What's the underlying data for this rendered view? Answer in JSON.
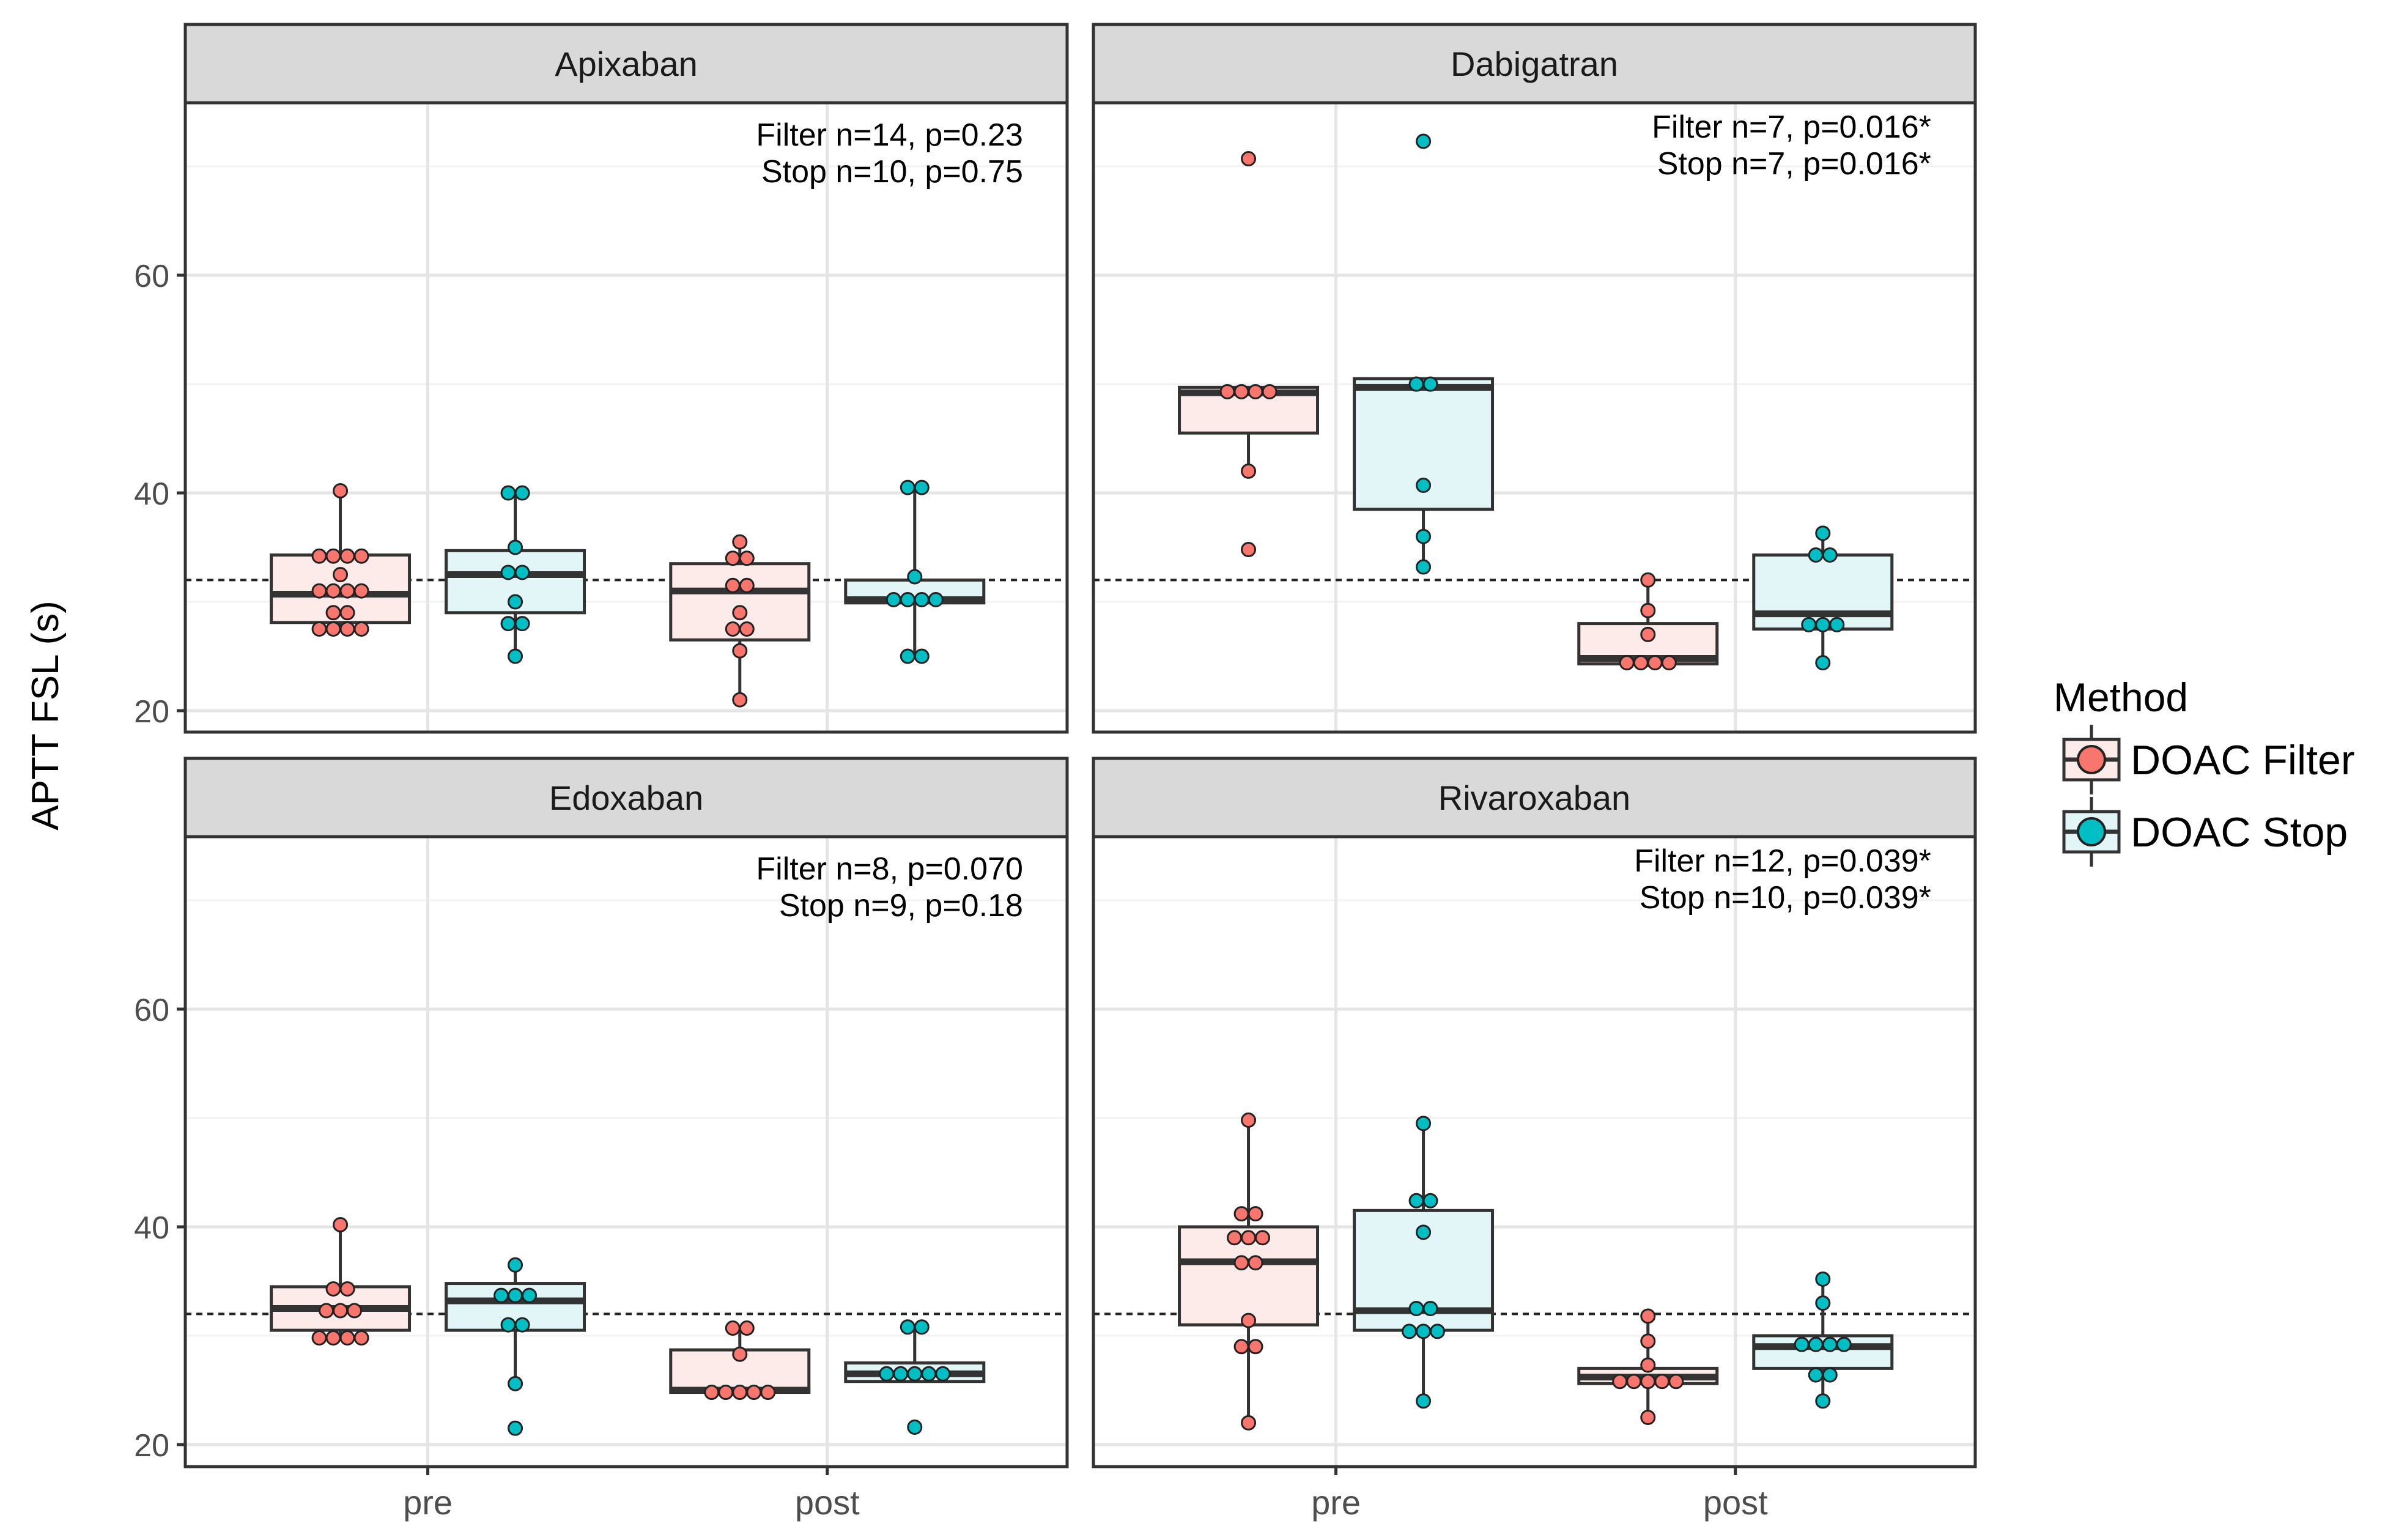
{
  "chart_data": {
    "type": "box",
    "ylabel": "APTT FSL (s)",
    "xlabel": "",
    "categories": [
      "pre",
      "post"
    ],
    "y_ticks": [
      "20",
      "40",
      "60"
    ],
    "ylim": [
      18,
      73
    ],
    "reference_line": 32,
    "grid": true,
    "legend": {
      "title": "Method",
      "position": "right",
      "items": [
        {
          "label": "DOAC Filter",
          "color": "#F8766D",
          "fill": "#FDEBEA"
        },
        {
          "label": "DOAC Stop",
          "color": "#00BFC4",
          "fill": "#E3F6F7"
        }
      ]
    },
    "panels": [
      {
        "title": "Apixaban",
        "annotation": [
          "Filter n=14, p=0.23",
          "Stop n=10, p=0.75"
        ],
        "groups": [
          {
            "category": "pre",
            "method": "DOAC Filter",
            "box": [
              27.5,
              28.1,
              30.7,
              34.3,
              40.2
            ],
            "points": [
              40.2,
              34.2,
              34.2,
              34.2,
              34.2,
              32.5,
              31.0,
              31.0,
              31.0,
              31.0,
              29.0,
              29.0,
              27.5,
              27.5,
              27.5,
              27.5
            ]
          },
          {
            "category": "pre",
            "method": "DOAC Stop",
            "box": [
              25.0,
              29.0,
              32.5,
              34.7,
              40.0
            ],
            "points": [
              40.0,
              40.0,
              35.0,
              32.7,
              32.7,
              30.0,
              28.0,
              28.0,
              25.0
            ]
          },
          {
            "category": "post",
            "method": "DOAC Filter",
            "box": [
              21.0,
              26.5,
              31.0,
              33.5,
              35.5
            ],
            "points": [
              35.5,
              34.0,
              34.0,
              31.5,
              31.5,
              29.0,
              27.5,
              27.5,
              25.5,
              21.0
            ]
          },
          {
            "category": "post",
            "method": "DOAC Stop",
            "box": [
              25.0,
              29.9,
              30.2,
              32.0,
              40.5
            ],
            "points": [
              40.5,
              40.5,
              32.3,
              30.2,
              30.2,
              30.2,
              30.2,
              25.0,
              25.0
            ]
          }
        ]
      },
      {
        "title": "Dabigatran",
        "annotation": [
          "Filter n=7, p=0.016*",
          "Stop n=7, p=0.016*"
        ],
        "groups": [
          {
            "category": "pre",
            "method": "DOAC Filter",
            "box": [
              42.0,
              45.5,
              49.2,
              49.7,
              49.7
            ],
            "points": [
              70.7,
              49.3,
              49.3,
              49.3,
              49.3,
              42.0,
              34.8
            ]
          },
          {
            "category": "pre",
            "method": "DOAC Stop",
            "box": [
              33.0,
              38.5,
              49.7,
              50.5,
              50.5
            ],
            "points": [
              72.3,
              50.0,
              50.0,
              40.7,
              36.0,
              33.2
            ]
          },
          {
            "category": "post",
            "method": "DOAC Filter",
            "box": [
              24.0,
              24.3,
              24.8,
              28.0,
              31.7
            ],
            "points": [
              32.0,
              29.2,
              27.0,
              24.4,
              24.4,
              24.4,
              24.4
            ]
          },
          {
            "category": "post",
            "method": "DOAC Stop",
            "box": [
              24.3,
              27.5,
              28.9,
              34.3,
              36.2
            ],
            "points": [
              36.3,
              34.3,
              34.3,
              27.9,
              27.9,
              27.9,
              24.4
            ]
          }
        ]
      },
      {
        "title": "Edoxaban",
        "annotation": [
          "Filter n=8, p=0.070",
          "Stop n=9, p=0.18"
        ],
        "groups": [
          {
            "category": "pre",
            "method": "DOAC Filter",
            "box": [
              29.8,
              30.5,
              32.5,
              34.5,
              40.2
            ],
            "points": [
              40.2,
              34.3,
              34.3,
              32.3,
              32.3,
              32.3,
              29.8,
              29.8,
              29.8,
              29.8
            ]
          },
          {
            "category": "pre",
            "method": "DOAC Stop",
            "box": [
              25.6,
              30.5,
              33.2,
              34.8,
              36.5
            ],
            "points": [
              36.5,
              33.7,
              33.7,
              33.7,
              31.0,
              31.0,
              25.6,
              21.5
            ]
          },
          {
            "category": "post",
            "method": "DOAC Filter",
            "box": [
              24.8,
              24.8,
              25.0,
              28.7,
              30.7
            ],
            "points": [
              30.7,
              30.7,
              28.3,
              24.8,
              24.8,
              24.8,
              24.8,
              24.8
            ]
          },
          {
            "category": "post",
            "method": "DOAC Stop",
            "box": [
              25.8,
              25.8,
              26.5,
              27.5,
              30.8
            ],
            "points": [
              30.8,
              30.8,
              26.5,
              26.5,
              26.5,
              26.5,
              26.5,
              21.6
            ]
          }
        ]
      },
      {
        "title": "Rivaroxaban",
        "annotation": [
          "Filter n=12, p=0.039*",
          "Stop n=10, p=0.039*"
        ],
        "groups": [
          {
            "category": "pre",
            "method": "DOAC Filter",
            "box": [
              22.0,
              31.0,
              36.8,
              40.0,
              49.8
            ],
            "points": [
              49.8,
              41.2,
              41.2,
              39.0,
              39.0,
              39.0,
              36.7,
              36.7,
              31.4,
              29.0,
              29.0,
              22.0
            ]
          },
          {
            "category": "pre",
            "method": "DOAC Stop",
            "box": [
              24.0,
              30.5,
              32.3,
              41.5,
              49.5
            ],
            "points": [
              49.5,
              42.4,
              42.4,
              39.5,
              32.5,
              32.5,
              30.4,
              30.4,
              30.4,
              24.0
            ]
          },
          {
            "category": "post",
            "method": "DOAC Filter",
            "box": [
              23.0,
              25.6,
              26.2,
              27.0,
              31.8
            ],
            "points": [
              31.8,
              29.5,
              27.3,
              25.8,
              25.8,
              25.8,
              25.8,
              25.8,
              22.5
            ]
          },
          {
            "category": "post",
            "method": "DOAC Stop",
            "box": [
              24.0,
              27.0,
              29.0,
              30.0,
              35.2
            ],
            "points": [
              35.2,
              33.0,
              29.2,
              29.2,
              29.2,
              29.2,
              26.4,
              26.4,
              24.0
            ]
          }
        ]
      }
    ]
  }
}
